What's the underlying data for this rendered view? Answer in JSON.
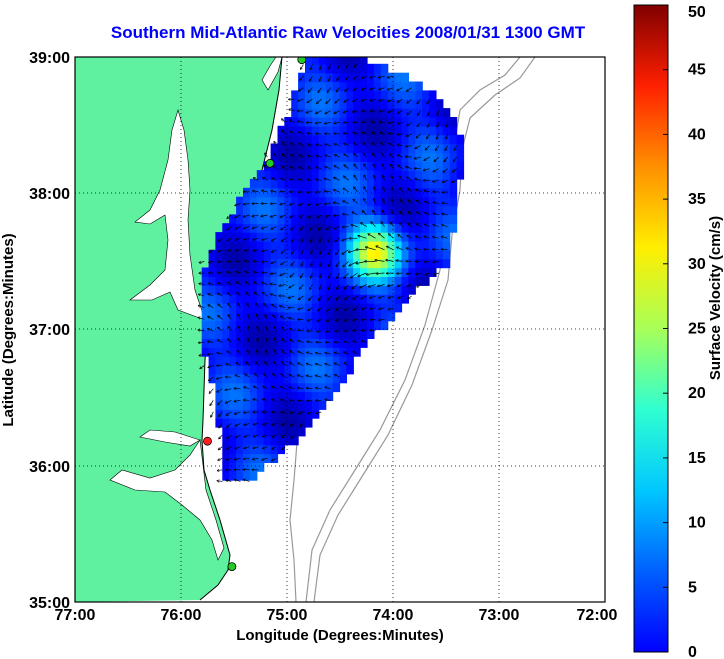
{
  "title": "Southern Mid-Atlantic Raw Velocities 2008/01/31 1300 GMT",
  "map": {
    "x_label": "Longitude (Degrees:Minutes)",
    "y_label": "Latitude (Degrees:Minutes)",
    "lon_ticks": [
      "77:00",
      "76:00",
      "75:00",
      "74:00",
      "73:00",
      "72:00"
    ],
    "lat_ticks": [
      "39:00",
      "38:00",
      "37:00",
      "36:00",
      "35:00"
    ],
    "lon_range": [
      -77,
      -72
    ],
    "lat_range": [
      35,
      39
    ],
    "grid": "dotted",
    "land_color": "#5ff0a0",
    "bathymetry_color": "#999999",
    "stations": [
      {
        "lat": 38.98,
        "lon": -74.86,
        "color": "#22cc22"
      },
      {
        "lat": 38.22,
        "lon": -75.16,
        "color": "#22cc22"
      },
      {
        "lat": 36.18,
        "lon": -75.75,
        "color": "#ff2222"
      },
      {
        "lat": 35.26,
        "lon": -75.52,
        "color": "#22cc22"
      }
    ]
  },
  "colorbar": {
    "label": "Surface Velocity (cm/s)",
    "min": 0,
    "max": 50,
    "ticks": [
      "0",
      "5",
      "10",
      "15",
      "20",
      "25",
      "30",
      "35",
      "40",
      "45",
      "50"
    ],
    "colormap": "jet"
  },
  "chart_data": {
    "type": "heatmap",
    "title": "Southern Mid-Atlantic Raw Velocities 2008/01/31 1300 GMT",
    "xlabel": "Longitude (Degrees:Minutes)",
    "ylabel": "Latitude (Degrees:Minutes)",
    "xlim": [
      -77,
      -72
    ],
    "ylim": [
      35,
      39
    ],
    "value_label": "Surface Velocity (cm/s)",
    "value_range": [
      0,
      50
    ],
    "typical_speed_cm_s": 7,
    "peak_speed_cm_s": 28,
    "peak_location": {
      "lat": 37.55,
      "lon": -74.2
    }
  }
}
